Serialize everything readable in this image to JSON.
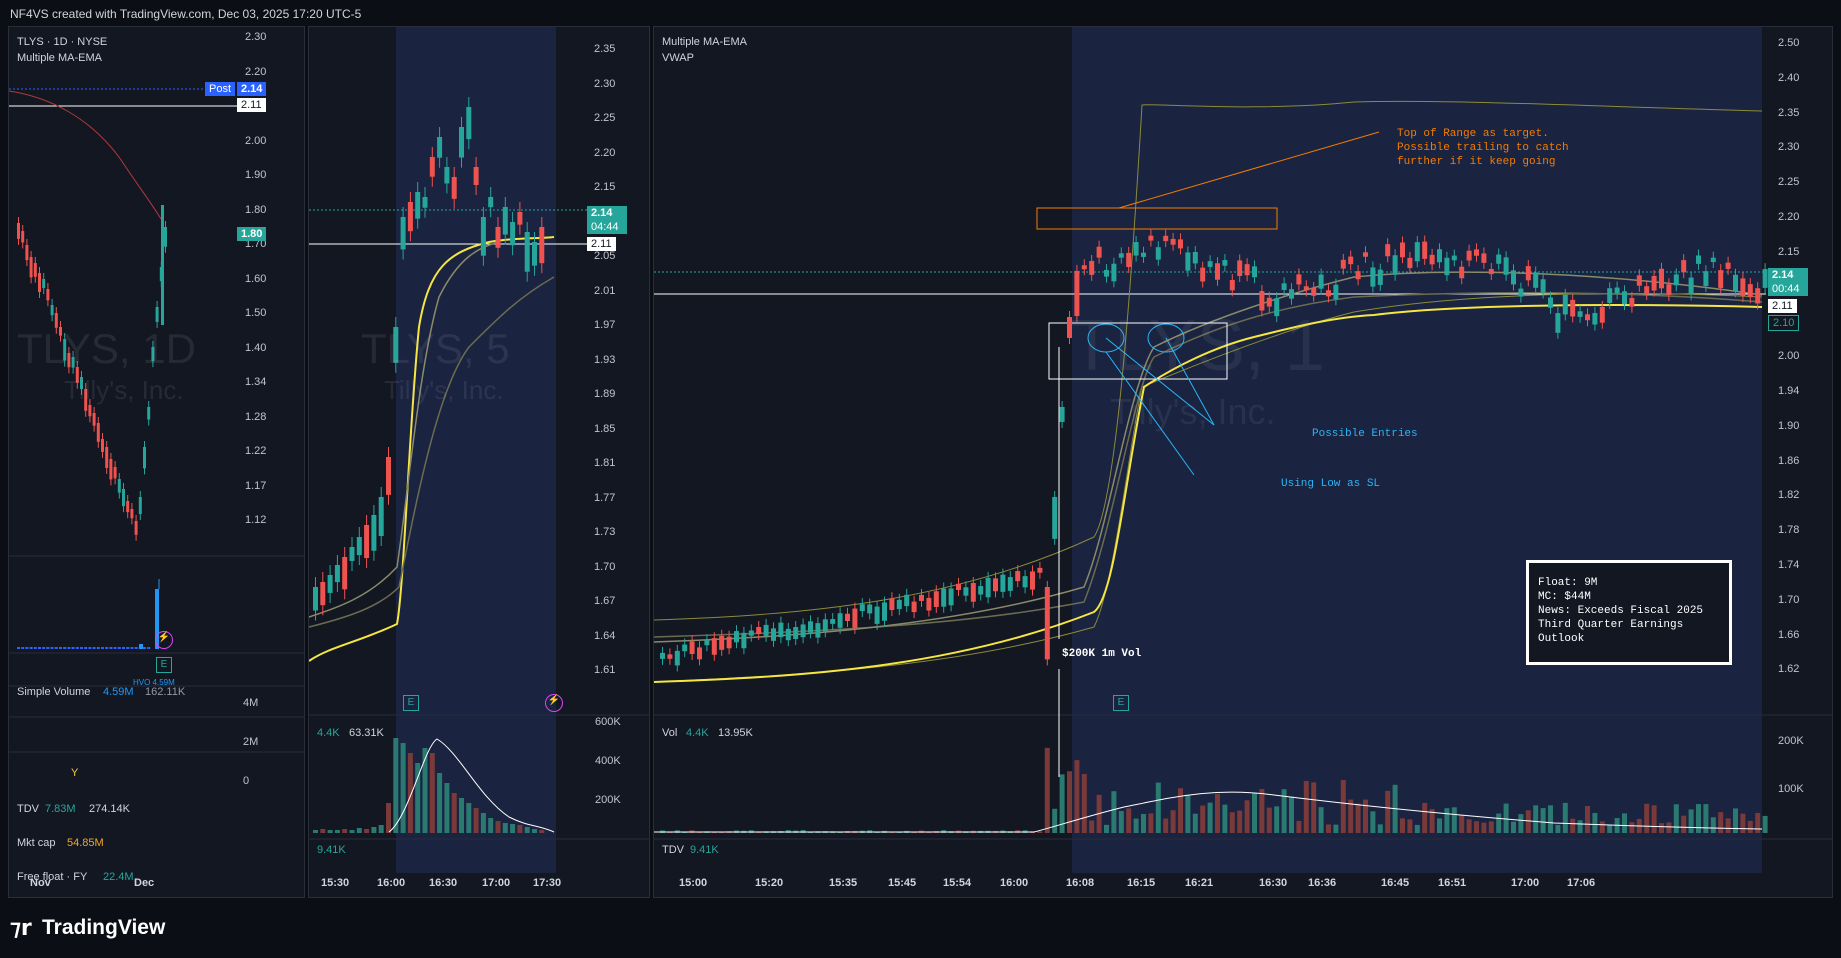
{
  "header": {
    "credit": "NF4VS created with TradingView.com, Dec 03, 2025 17:20 UTC-5"
  },
  "footer": {
    "brand": "TradingView"
  },
  "colors": {
    "bg": "#131722",
    "up": "#26a69a",
    "down": "#ef5350",
    "accent": "#2962ff",
    "ma_yellow": "#f5e642",
    "annotation_orange": "#f57c00",
    "annotation_blue": "#29b6f6"
  },
  "panel_daily": {
    "symbol": "TLYS · 1D · NYSE",
    "indicator": "Multiple MA-EMA",
    "watermark_symbol": "TLYS, 1D",
    "watermark_name": "Tilly's, Inc.",
    "post_label": "Post",
    "post_price": "2.14",
    "last_price": "2.11",
    "close_tag": "1.80",
    "price_ticks": [
      "2.30",
      "2.20",
      "2.10",
      "2.00",
      "1.90",
      "1.80",
      "1.70",
      "1.60",
      "1.50",
      "1.40",
      "1.34",
      "1.28",
      "1.22",
      "1.17",
      "1.12"
    ],
    "volume_label": "Simple Volume",
    "volume_value": "4.59M",
    "volume_avg": "162.11K",
    "hvo_label": "HVO 4.59M",
    "vol_ticks": [
      "4M",
      "2M",
      "0"
    ],
    "tdv_label": "TDV",
    "tdv_value1": "7.83M",
    "tdv_value2": "274.14K",
    "mktcap_label": "Mkt cap",
    "mktcap_value": "54.85M",
    "float_label": "Free float · FY",
    "float_value": "22.4M",
    "time_ticks": [
      "Nov",
      "Dec"
    ],
    "earnings_icon": "E",
    "lightning_icon": "lightning-icon",
    "y_marker": "Y"
  },
  "panel_5m": {
    "watermark_symbol": "TLYS, 5",
    "watermark_name": "Tilly's, Inc.",
    "price_tag": "2.14",
    "countdown": "04:44",
    "last_price": "2.11",
    "price_ticks": [
      "2.35",
      "2.30",
      "2.25",
      "2.20",
      "2.15",
      "2.10",
      "2.05",
      "2.01",
      "1.97",
      "1.93",
      "1.89",
      "1.85",
      "1.81",
      "1.77",
      "1.73",
      "1.70",
      "1.67",
      "1.64",
      "1.61"
    ],
    "vol_value1": "4.4K",
    "vol_value2": "63.31K",
    "vol_ticks": [
      "600K",
      "400K",
      "200K"
    ],
    "tdv_value": "9.41K",
    "time_ticks": [
      "15:30",
      "16:00",
      "16:30",
      "17:00",
      "17:30"
    ],
    "earnings_icon": "E"
  },
  "panel_1m": {
    "indicator1": "Multiple MA-EMA",
    "indicator2": "VWAP",
    "watermark_symbol": "TLYS, 1",
    "watermark_name": "Tilly's, Inc.",
    "price_tag": "2.14",
    "countdown": "00:44",
    "last_price": "2.11",
    "low_tag": "2.10",
    "price_ticks": [
      "2.50",
      "2.40",
      "2.35",
      "2.30",
      "2.25",
      "2.20",
      "2.15",
      "2.10",
      "2.05",
      "2.00",
      "1.94",
      "1.90",
      "1.86",
      "1.82",
      "1.78",
      "1.74",
      "1.70",
      "1.66",
      "1.62"
    ],
    "annotation_target": [
      "Top of Range as  target.",
      "Possible trailing to catch",
      "further if it keep going"
    ],
    "annotation_entries": "Possible Entries",
    "annotation_sl": "Using Low as SL",
    "annotation_vol": "$200K 1m Vol",
    "info_box": [
      "Float: 9M",
      "MC: $44M",
      "News: Exceeds Fiscal 2025",
      "Third Quarter Earnings",
      "Outlook"
    ],
    "vol_label": "Vol",
    "vol_value1": "4.4K",
    "vol_value2": "13.95K",
    "vol_ticks": [
      "200K",
      "100K"
    ],
    "tdv_label": "TDV",
    "tdv_value": "9.41K",
    "time_ticks": [
      "15:00",
      "15:20",
      "15:35",
      "15:45",
      "15:54",
      "16:00",
      "16:08",
      "16:15",
      "16:21",
      "16:30",
      "16:36",
      "16:45",
      "16:51",
      "17:00",
      "17:06"
    ],
    "earnings_icon": "E"
  }
}
